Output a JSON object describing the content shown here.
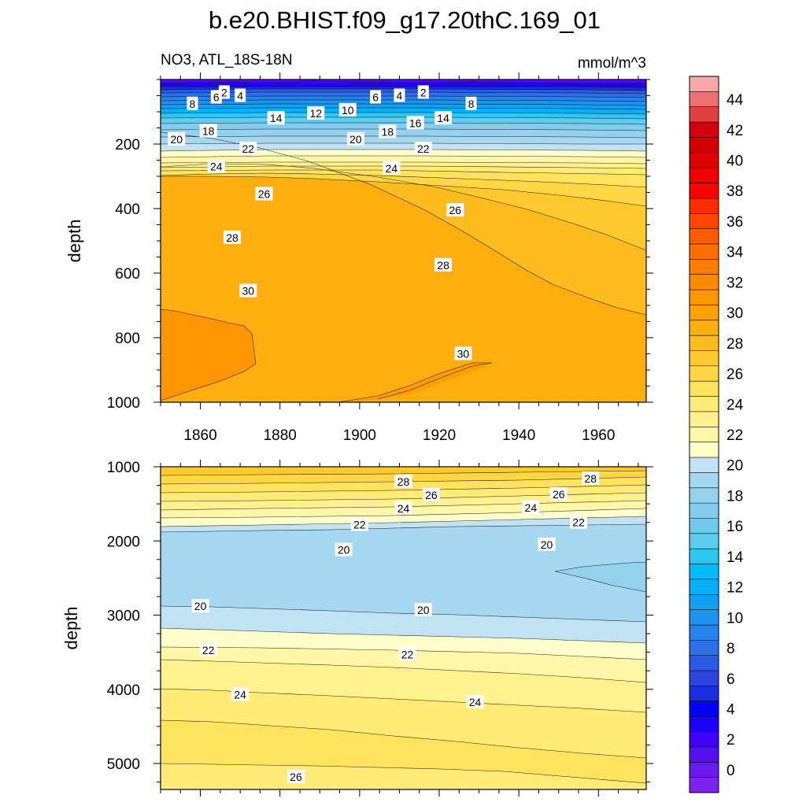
{
  "chart_data": [
    {
      "type": "contour",
      "title": "b.e20.BHIST.f09_g17.20thC.169_01",
      "subtitle_left": "NO3, ATL_18S-18N",
      "subtitle_right": "mmol/m^3",
      "xlabel": "",
      "ylabel": "depth",
      "xlim": [
        1850,
        1972
      ],
      "ylim": [
        1000,
        0
      ],
      "xticks": [
        1860,
        1880,
        1900,
        1920,
        1940,
        1960
      ],
      "yticks": [
        200,
        400,
        600,
        800,
        1000
      ],
      "contour_labels": [
        {
          "value": "2",
          "x": 1866,
          "y": 40
        },
        {
          "value": "4",
          "x": 1870,
          "y": 50
        },
        {
          "value": "6",
          "x": 1864,
          "y": 55
        },
        {
          "value": "8",
          "x": 1858,
          "y": 75
        },
        {
          "value": "14",
          "x": 1879,
          "y": 120
        },
        {
          "value": "12",
          "x": 1889,
          "y": 105
        },
        {
          "value": "10",
          "x": 1897,
          "y": 95
        },
        {
          "value": "6",
          "x": 1904,
          "y": 55
        },
        {
          "value": "4",
          "x": 1910,
          "y": 50
        },
        {
          "value": "2",
          "x": 1916,
          "y": 40
        },
        {
          "value": "8",
          "x": 1928,
          "y": 75
        },
        {
          "value": "14",
          "x": 1921,
          "y": 120
        },
        {
          "value": "16",
          "x": 1914,
          "y": 135
        },
        {
          "value": "18",
          "x": 1862,
          "y": 160
        },
        {
          "value": "18",
          "x": 1907,
          "y": 162
        },
        {
          "value": "20",
          "x": 1854,
          "y": 185
        },
        {
          "value": "20",
          "x": 1899,
          "y": 185
        },
        {
          "value": "22",
          "x": 1872,
          "y": 215
        },
        {
          "value": "22",
          "x": 1916,
          "y": 215
        },
        {
          "value": "24",
          "x": 1864,
          "y": 270
        },
        {
          "value": "24",
          "x": 1908,
          "y": 275
        },
        {
          "value": "26",
          "x": 1876,
          "y": 355
        },
        {
          "value": "26",
          "x": 1924,
          "y": 405
        },
        {
          "value": "28",
          "x": 1868,
          "y": 490
        },
        {
          "value": "28",
          "x": 1921,
          "y": 575
        },
        {
          "value": "30",
          "x": 1872,
          "y": 655
        },
        {
          "value": "30",
          "x": 1926,
          "y": 850
        }
      ]
    },
    {
      "type": "contour",
      "xlabel": "",
      "ylabel": "depth",
      "xlim": [
        1850,
        1972
      ],
      "ylim": [
        5350,
        1000
      ],
      "yticks": [
        1000,
        2000,
        3000,
        4000,
        5000
      ],
      "contour_labels": [
        {
          "value": "28",
          "x": 1911,
          "y": 1200
        },
        {
          "value": "26",
          "x": 1918,
          "y": 1380
        },
        {
          "value": "24",
          "x": 1911,
          "y": 1560
        },
        {
          "value": "22",
          "x": 1900,
          "y": 1780
        },
        {
          "value": "20",
          "x": 1896,
          "y": 2120
        },
        {
          "value": "28",
          "x": 1958,
          "y": 1160
        },
        {
          "value": "26",
          "x": 1950,
          "y": 1370
        },
        {
          "value": "24",
          "x": 1943,
          "y": 1550
        },
        {
          "value": "22",
          "x": 1955,
          "y": 1750
        },
        {
          "value": "20",
          "x": 1947,
          "y": 2050
        },
        {
          "value": "20",
          "x": 1860,
          "y": 2880
        },
        {
          "value": "20",
          "x": 1916,
          "y": 2930
        },
        {
          "value": "22",
          "x": 1862,
          "y": 3470
        },
        {
          "value": "22",
          "x": 1912,
          "y": 3530
        },
        {
          "value": "24",
          "x": 1870,
          "y": 4070
        },
        {
          "value": "24",
          "x": 1929,
          "y": 4170
        },
        {
          "value": "26",
          "x": 1884,
          "y": 5180
        }
      ]
    }
  ],
  "colorbar": {
    "min": -1,
    "step": 1,
    "tick_labels": [
      "0",
      "2",
      "4",
      "6",
      "8",
      "10",
      "12",
      "14",
      "16",
      "18",
      "20",
      "22",
      "24",
      "26",
      "28",
      "30",
      "32",
      "34",
      "36",
      "38",
      "40",
      "42",
      "44"
    ],
    "colors": [
      "#7b24f0",
      "#6a1aee",
      "#5510f0",
      "#3e00f7",
      "#1e00fb",
      "#0000ff",
      "#1a2ee0",
      "#2d44de",
      "#2a5ae6",
      "#2e6ee8",
      "#2882ec",
      "#1f92f0",
      "#12a0f4",
      "#05b0f8",
      "#00bdf9",
      "#2dc6f5",
      "#5ecbf0",
      "#70c9ef",
      "#82cdef",
      "#93d1ef",
      "#a5d8f0",
      "#c0e2f2",
      "#ffffcc",
      "#fff6a8",
      "#fff28e",
      "#ffeb75",
      "#ffe35e",
      "#ffd645",
      "#ffca2e",
      "#ffbc1f",
      "#ffae10",
      "#ffa105",
      "#ff9500",
      "#ff8a00",
      "#ff7d00",
      "#ff6e00",
      "#ff5c00",
      "#ff4500",
      "#ff2a00",
      "#ff0000",
      "#f00000",
      "#dd0000",
      "#d20000",
      "#d40010",
      "#e04040",
      "#ee7070",
      "#f8a8a8"
    ]
  }
}
